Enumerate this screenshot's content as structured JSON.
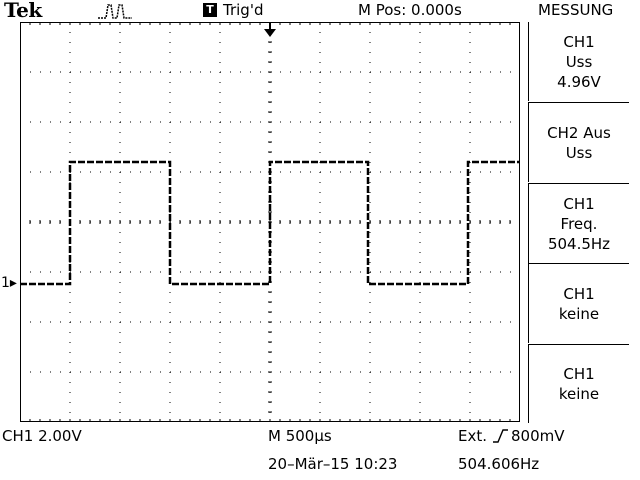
{
  "header": {
    "brand": "Tek",
    "acquire_icon": "pulse-acquire-icon",
    "trigger_box": "T",
    "trigger_status": "Trig'd",
    "horizontal_position": "M Pos: 0.000s",
    "menu_title": "MESSUNG"
  },
  "menu": {
    "items": [
      {
        "line1": "CH1",
        "line2": "Uss",
        "line3": "4.96V"
      },
      {
        "line1": "CH2 Aus",
        "line2": "Uss",
        "line3": ""
      },
      {
        "line1": "CH1",
        "line2": "Freq.",
        "line3": "504.5Hz"
      },
      {
        "line1": "CH1",
        "line2": "keine",
        "line3": ""
      },
      {
        "line1": "CH1",
        "line2": "keine",
        "line3": ""
      }
    ]
  },
  "status": {
    "ch1_scale": "CH1  2.00V",
    "timebase": "M 500µs",
    "trigger_source": "Ext.",
    "trigger_slope_icon": "rising-edge-icon",
    "trigger_level": "800mV",
    "datetime": "20–Mär–15 10:23",
    "frequency": "504.606Hz"
  },
  "waveform": {
    "ch1_marker": "1",
    "grid_divisions": [
      10,
      8
    ],
    "trace_color": "#000000",
    "ch1_marker_level_div": 0,
    "trigger_marker_div": 5,
    "trace_low_div": 0,
    "trace_high_div": 2.44,
    "edges_div": [
      {
        "t": 1.0,
        "rising": true
      },
      {
        "t": 3.0,
        "rising": false
      },
      {
        "t": 5.0,
        "rising": true
      },
      {
        "t": 6.96,
        "rising": false
      },
      {
        "t": 8.96,
        "rising": true
      }
    ]
  }
}
